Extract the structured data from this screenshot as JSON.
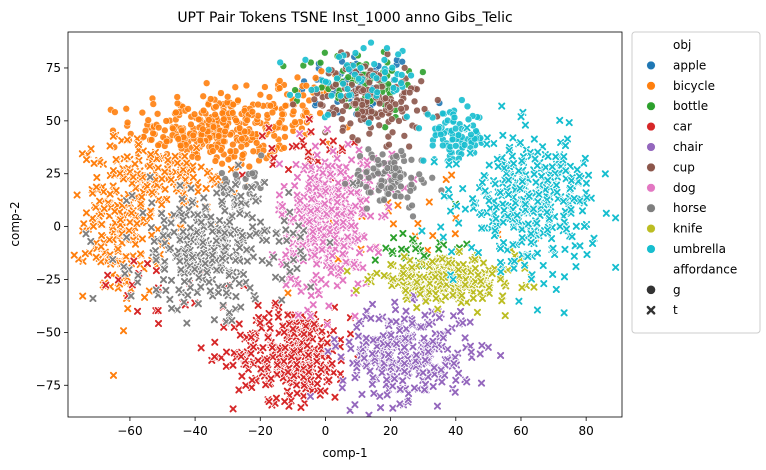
{
  "chart_data": {
    "type": "scatter",
    "title": "UPT Pair Tokens TSNE Inst_1000 anno Gibs_Telic",
    "xlabel": "comp-1",
    "ylabel": "comp-2",
    "xlim": [
      -79,
      91
    ],
    "ylim": [
      -90,
      92
    ],
    "xticks": [
      -60,
      -40,
      -20,
      0,
      20,
      40,
      60,
      80
    ],
    "yticks": [
      -75,
      -50,
      -25,
      0,
      25,
      50,
      75
    ],
    "grid": false,
    "legend": {
      "placement": "outside-right",
      "hue_title": "obj",
      "style_title": "affordance",
      "styles": [
        {
          "name": "g",
          "marker": "circle"
        },
        {
          "name": "t",
          "marker": "x"
        }
      ]
    },
    "series": [
      {
        "name": "apple",
        "color": "#1f77b4",
        "marker": "circle",
        "clusters": [
          {
            "cx": 10,
            "cy": 65,
            "sx": 9,
            "sy": 9,
            "n": 60
          }
        ]
      },
      {
        "name": "bicycle",
        "color": "#ff7f0e",
        "marker": "circle",
        "clusters": [
          {
            "cx": -35,
            "cy": 45,
            "sx": 12,
            "sy": 9,
            "n": 330
          },
          {
            "cx": -10,
            "cy": 56,
            "sx": 6,
            "sy": 8,
            "n": 60
          }
        ]
      },
      {
        "name": "bicycle",
        "color": "#ff7f0e",
        "marker": "x",
        "clusters": [
          {
            "cx": -62,
            "cy": 3,
            "sx": 6,
            "sy": 19,
            "n": 230
          },
          {
            "cx": -47,
            "cy": 22,
            "sx": 10,
            "sy": 7,
            "n": 100
          },
          {
            "cx": 20,
            "cy": -5,
            "sx": 20,
            "sy": 12,
            "n": 25
          }
        ]
      },
      {
        "name": "bottle",
        "color": "#2ca02c",
        "marker": "circle",
        "clusters": [
          {
            "cx": 10,
            "cy": 68,
            "sx": 9,
            "sy": 8,
            "n": 70
          }
        ]
      },
      {
        "name": "bottle",
        "color": "#2ca02c",
        "marker": "x",
        "clusters": [
          {
            "cx": 30,
            "cy": -10,
            "sx": 6,
            "sy": 6,
            "n": 30
          }
        ]
      },
      {
        "name": "car",
        "color": "#d62728",
        "marker": "x",
        "clusters": [
          {
            "cx": -10,
            "cy": -60,
            "sx": 9,
            "sy": 11,
            "n": 340
          },
          {
            "cx": -3,
            "cy": 37,
            "sx": 7,
            "sy": 6,
            "n": 30
          },
          {
            "cx": -45,
            "cy": -28,
            "sx": 14,
            "sy": 10,
            "n": 25
          }
        ]
      },
      {
        "name": "chair",
        "color": "#9467bd",
        "marker": "x",
        "clusters": [
          {
            "cx": 25,
            "cy": -60,
            "sx": 10,
            "sy": 11,
            "n": 320
          }
        ]
      },
      {
        "name": "cup",
        "color": "#8c564b",
        "marker": "circle",
        "clusters": [
          {
            "cx": 14,
            "cy": 60,
            "sx": 8,
            "sy": 9,
            "n": 150
          }
        ]
      },
      {
        "name": "dog",
        "color": "#e377c2",
        "marker": "x",
        "clusters": [
          {
            "cx": 0,
            "cy": 0,
            "sx": 7,
            "sy": 16,
            "n": 360
          },
          {
            "cx": 12,
            "cy": 28,
            "sx": 8,
            "sy": 5,
            "n": 40
          }
        ]
      },
      {
        "name": "horse",
        "color": "#7f7f7f",
        "marker": "circle",
        "clusters": [
          {
            "cx": 20,
            "cy": 23,
            "sx": 6,
            "sy": 7,
            "n": 100
          },
          {
            "cx": -25,
            "cy": 22,
            "sx": 4,
            "sy": 4,
            "n": 25
          }
        ]
      },
      {
        "name": "horse",
        "color": "#7f7f7f",
        "marker": "x",
        "clusters": [
          {
            "cx": -35,
            "cy": -10,
            "sx": 12,
            "sy": 14,
            "n": 330
          }
        ]
      },
      {
        "name": "knife",
        "color": "#bcbd22",
        "marker": "x",
        "clusters": [
          {
            "cx": 37,
            "cy": -25,
            "sx": 11,
            "sy": 5,
            "n": 280
          }
        ]
      },
      {
        "name": "umbrella",
        "color": "#17becf",
        "marker": "circle",
        "clusters": [
          {
            "cx": 40,
            "cy": 42,
            "sx": 5,
            "sy": 6,
            "n": 90
          },
          {
            "cx": 10,
            "cy": 70,
            "sx": 9,
            "sy": 8,
            "n": 60
          }
        ]
      },
      {
        "name": "umbrella",
        "color": "#17becf",
        "marker": "x",
        "clusters": [
          {
            "cx": 63,
            "cy": 12,
            "sx": 10,
            "sy": 15,
            "n": 360
          }
        ]
      }
    ],
    "legend_entries": [
      "apple",
      "bicycle",
      "bottle",
      "car",
      "chair",
      "cup",
      "dog",
      "horse",
      "knife",
      "umbrella"
    ]
  },
  "legend_colors": {
    "apple": "#1f77b4",
    "bicycle": "#ff7f0e",
    "bottle": "#2ca02c",
    "car": "#d62728",
    "chair": "#9467bd",
    "cup": "#8c564b",
    "dog": "#e377c2",
    "horse": "#7f7f7f",
    "knife": "#bcbd22",
    "umbrella": "#17becf"
  }
}
